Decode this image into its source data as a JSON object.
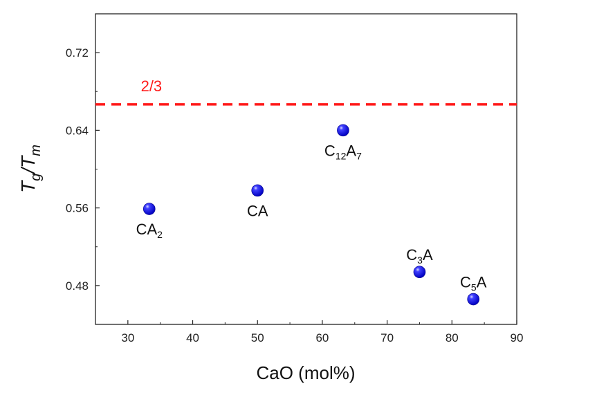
{
  "chart_data": {
    "type": "scatter",
    "title": "",
    "xlabel": "CaO (mol%)",
    "ylabel_main": "T",
    "ylabel_sub1": "g",
    "ylabel_slash": "/",
    "ylabel_sub2": "m",
    "xlim": [
      25,
      90
    ],
    "ylim": [
      0.44,
      0.76
    ],
    "xticks": [
      30,
      40,
      50,
      60,
      70,
      80,
      90
    ],
    "yticks": [
      0.48,
      0.56,
      0.64,
      0.72
    ],
    "ytick_labels": [
      "0.48",
      "0.56",
      "0.64",
      "0.72"
    ],
    "points": [
      {
        "x": 33.3,
        "y": 0.559,
        "label": "CA",
        "sub": "2",
        "tail": "",
        "label_pos": "below"
      },
      {
        "x": 50.0,
        "y": 0.578,
        "label": "CA",
        "sub": "",
        "tail": "",
        "label_pos": "below"
      },
      {
        "x": 63.2,
        "y": 0.64,
        "label": "C",
        "sub": "12",
        "tail": "A",
        "sub2": "7",
        "label_pos": "below"
      },
      {
        "x": 75.0,
        "y": 0.494,
        "label": "C",
        "sub": "3",
        "tail": "A",
        "label_pos": "above"
      },
      {
        "x": 83.3,
        "y": 0.466,
        "label": "C",
        "sub": "5",
        "tail": "A",
        "label_pos": "above"
      }
    ],
    "reference_line": {
      "y": 0.6667,
      "label": "2/3",
      "color": "#ff1a1a",
      "style": "dashed"
    },
    "marker_color": "#1515e6"
  }
}
